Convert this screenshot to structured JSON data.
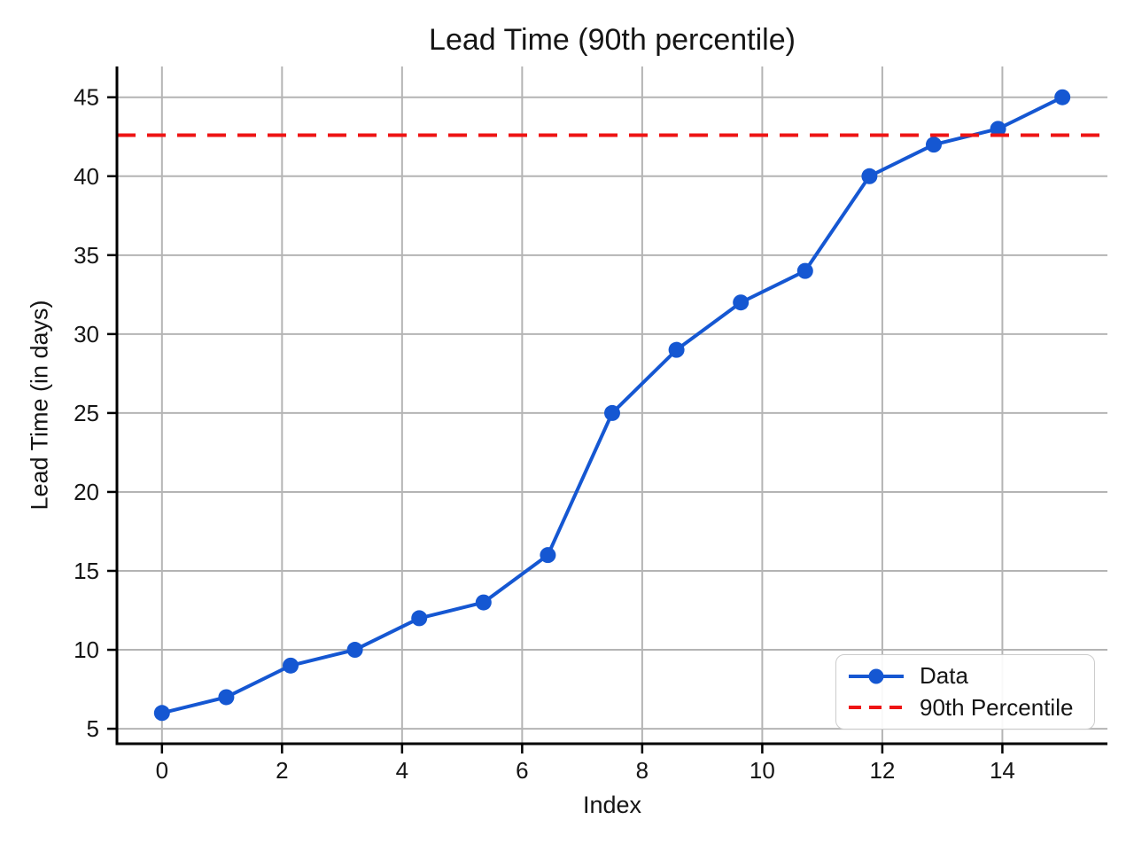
{
  "chart_data": {
    "type": "line",
    "title": "Lead Time (90th percentile)",
    "xlabel": "Index",
    "ylabel": "Lead Time (in days)",
    "xlim": [
      -0.75,
      15.75
    ],
    "ylim": [
      4.05,
      46.95
    ],
    "xticks": [
      0,
      2,
      4,
      6,
      8,
      10,
      12,
      14
    ],
    "yticks": [
      5,
      10,
      15,
      20,
      25,
      30,
      35,
      40,
      45
    ],
    "grid": true,
    "grid_color": "#b4b4b4",
    "legend_position": "lower right",
    "series": [
      {
        "name": "Data",
        "kind": "line-marker",
        "color": "#1557d2",
        "x": [
          0,
          1.0714,
          2.1429,
          3.2143,
          4.2857,
          5.3571,
          6.4286,
          7.5,
          8.5714,
          9.6429,
          10.7143,
          11.7857,
          12.8571,
          13.9286,
          15
        ],
        "y": [
          6,
          7,
          9,
          10,
          12,
          13,
          16,
          25,
          29,
          32,
          34,
          40,
          42,
          43,
          45
        ]
      },
      {
        "name": "90th Percentile",
        "kind": "hline-dashed",
        "color": "#ee1414",
        "value": 42.6
      }
    ],
    "legend": {
      "items": [
        {
          "label": "Data"
        },
        {
          "label": "90th Percentile"
        }
      ]
    }
  }
}
